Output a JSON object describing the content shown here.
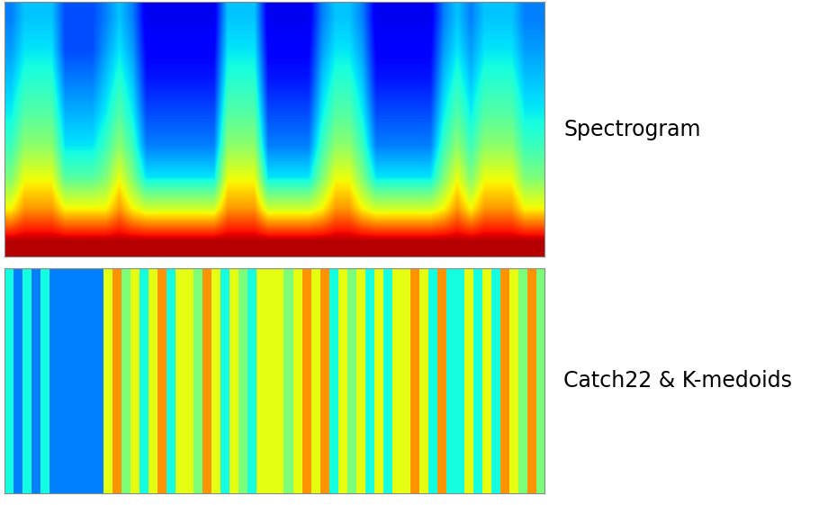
{
  "chart_data": [
    {
      "type": "heatmap",
      "title": "Spectrogram",
      "color": "jet",
      "color_range": [
        0,
        10
      ],
      "tick_labels": false,
      "cells": [
        [
          2.5,
          3.2,
          3.2,
          3.2,
          2.0,
          2.0,
          2.0,
          2.5,
          3.2,
          2.5,
          1.0,
          1.0,
          1.0,
          1.0,
          1.0,
          1.0,
          3.2,
          3.2,
          3.2,
          1.0,
          1.0,
          1.0,
          1.0,
          2.5,
          3.2,
          3.2,
          2.5,
          1.0,
          1.0,
          1.0,
          1.0,
          1.0,
          2.5,
          3.2,
          2.5,
          3.2,
          3.2,
          3.2,
          2.5,
          2.5
        ],
        [
          2.8,
          3.5,
          3.5,
          3.5,
          2.0,
          2.0,
          2.0,
          2.8,
          3.5,
          2.8,
          1.2,
          1.2,
          1.2,
          1.2,
          1.2,
          1.2,
          3.5,
          3.5,
          3.5,
          1.2,
          1.2,
          1.2,
          1.2,
          2.8,
          3.5,
          3.5,
          2.8,
          1.2,
          1.2,
          1.2,
          1.2,
          1.2,
          2.8,
          3.5,
          2.8,
          3.5,
          3.5,
          3.5,
          2.8,
          2.8
        ],
        [
          3.2,
          4.0,
          4.0,
          4.0,
          2.5,
          2.5,
          2.5,
          3.2,
          4.0,
          3.2,
          1.5,
          1.5,
          1.5,
          1.5,
          1.5,
          1.5,
          4.0,
          4.0,
          4.0,
          1.5,
          1.5,
          1.5,
          1.5,
          3.2,
          4.0,
          4.0,
          3.2,
          1.5,
          1.5,
          1.5,
          1.5,
          1.5,
          3.2,
          4.0,
          3.2,
          4.0,
          4.0,
          4.0,
          3.2,
          3.2
        ],
        [
          3.6,
          4.5,
          4.5,
          4.5,
          3.0,
          3.0,
          3.0,
          3.6,
          4.5,
          3.6,
          2.0,
          2.0,
          2.0,
          2.0,
          2.0,
          2.0,
          4.5,
          4.5,
          4.5,
          2.0,
          2.0,
          2.0,
          2.0,
          3.6,
          4.5,
          4.5,
          3.6,
          2.0,
          2.0,
          2.0,
          2.0,
          2.0,
          3.6,
          4.5,
          3.6,
          4.5,
          4.5,
          4.5,
          3.6,
          3.6
        ],
        [
          4.2,
          5.2,
          5.2,
          5.2,
          3.5,
          3.5,
          3.5,
          4.2,
          5.2,
          4.2,
          2.5,
          2.5,
          2.5,
          2.5,
          2.5,
          2.5,
          5.2,
          5.2,
          5.2,
          2.5,
          2.5,
          2.5,
          2.5,
          4.2,
          5.2,
          5.2,
          4.2,
          2.5,
          2.5,
          2.5,
          2.5,
          2.5,
          4.2,
          5.2,
          4.2,
          5.2,
          5.2,
          5.2,
          4.2,
          4.2
        ],
        [
          5.0,
          6.3,
          6.3,
          6.3,
          4.5,
          4.5,
          4.5,
          5.0,
          6.3,
          5.0,
          3.5,
          3.5,
          3.5,
          3.5,
          3.5,
          3.5,
          6.3,
          6.3,
          6.3,
          3.5,
          3.5,
          3.5,
          3.5,
          5.0,
          6.3,
          6.3,
          5.0,
          3.5,
          3.5,
          3.5,
          3.5,
          3.5,
          5.0,
          6.3,
          5.0,
          6.3,
          6.3,
          6.3,
          5.0,
          5.0
        ],
        [
          6.5,
          7.5,
          7.5,
          7.5,
          6.5,
          6.5,
          6.5,
          6.5,
          7.5,
          6.5,
          6.0,
          6.0,
          6.0,
          6.0,
          6.0,
          6.0,
          7.5,
          7.5,
          7.5,
          6.0,
          6.0,
          6.0,
          6.0,
          6.5,
          7.5,
          7.5,
          6.5,
          6.0,
          6.0,
          6.0,
          6.0,
          6.0,
          6.5,
          7.5,
          6.5,
          7.5,
          7.5,
          7.5,
          6.5,
          6.5
        ],
        [
          9.5,
          9.5,
          9.5,
          9.5,
          9.5,
          9.5,
          9.5,
          9.5,
          9.5,
          9.5,
          9.5,
          9.5,
          9.5,
          9.5,
          9.5,
          9.5,
          9.5,
          9.5,
          9.5,
          9.5,
          9.5,
          9.5,
          9.5,
          9.5,
          9.5,
          9.5,
          9.5,
          9.5,
          9.5,
          9.5,
          9.5,
          9.5,
          9.5,
          9.5,
          9.5,
          9.5,
          9.5,
          9.5,
          9.5,
          9.5
        ]
      ]
    },
    {
      "type": "heatmap",
      "title": "Catch22 & K-medoids",
      "color": "jet",
      "color_range": [
        -1,
        7
      ],
      "tick_labels": false,
      "cells": [
        [
          2,
          1,
          2,
          1,
          2,
          1,
          1,
          1,
          1,
          1,
          1,
          4,
          5,
          3,
          4,
          2,
          4,
          5,
          2,
          4,
          4,
          3,
          5,
          4,
          2,
          4,
          3,
          2,
          4,
          4,
          4,
          3,
          4,
          5,
          4,
          5,
          2,
          4,
          3,
          4,
          2,
          4,
          2,
          4,
          4,
          5,
          4,
          2,
          5,
          2,
          2,
          4,
          2,
          4,
          2,
          5,
          4,
          3,
          5,
          3
        ]
      ]
    }
  ]
}
